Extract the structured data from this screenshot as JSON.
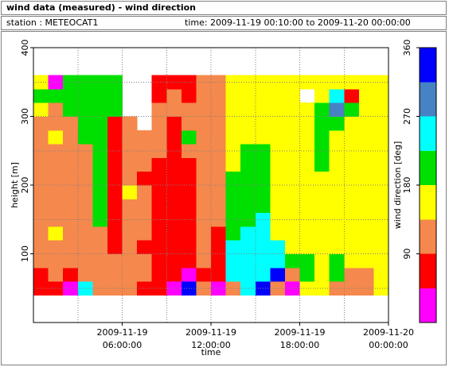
{
  "chart_data": {
    "type": "heatmap",
    "title": "wind data (measured) - wind direction",
    "station": "station : METEOCAT1",
    "period": "time: 2009-11-19 00:10:00 to 2009-11-20 00:00:00",
    "x_label": "time",
    "y_label": "height [m]",
    "xlim": [
      0,
      24
    ],
    "xticks": [
      {
        "value": 6,
        "label": [
          "2009-11-19",
          "06:00:00"
        ]
      },
      {
        "value": 12,
        "label": [
          "2009-11-19",
          "12:00:00"
        ]
      },
      {
        "value": 18,
        "label": [
          "2009-11-19",
          "18:00:00"
        ]
      },
      {
        "value": 24,
        "label": [
          "2009-11-20",
          "00:00:00"
        ]
      }
    ],
    "xminorticks": [
      3,
      9,
      15,
      21
    ],
    "ylim": [
      0,
      400
    ],
    "yticks": [
      100,
      200,
      300,
      400
    ],
    "yminorticks": [
      50,
      150,
      250,
      350
    ],
    "grid": true,
    "xbins": [
      0,
      1,
      2,
      3,
      4,
      5,
      6,
      7,
      8,
      9,
      10,
      11,
      12,
      13,
      14,
      15,
      16,
      17,
      18,
      19,
      20,
      21,
      22,
      23,
      24
    ],
    "ybins": [
      40,
      60,
      80,
      100,
      120,
      140,
      160,
      180,
      200,
      220,
      240,
      260,
      280,
      300,
      320,
      340,
      360
    ],
    "z": [
      [
        70,
        70,
        110,
        110,
        110,
        110,
        110,
        110,
        110,
        110,
        110,
        110,
        110,
        160,
        200,
        160
      ],
      [
        70,
        110,
        110,
        110,
        160,
        110,
        110,
        110,
        110,
        110,
        110,
        160,
        110,
        110,
        200,
        20
      ],
      [
        20,
        70,
        110,
        110,
        110,
        110,
        110,
        110,
        110,
        110,
        110,
        110,
        110,
        200,
        200,
        200
      ],
      [
        250,
        110,
        110,
        110,
        110,
        110,
        110,
        110,
        110,
        110,
        110,
        200,
        200,
        200,
        200,
        200
      ],
      [
        110,
        110,
        110,
        110,
        110,
        200,
        200,
        200,
        200,
        200,
        200,
        200,
        200,
        200,
        200,
        200
      ],
      [
        110,
        110,
        110,
        70,
        70,
        70,
        70,
        70,
        70,
        70,
        70,
        70,
        70,
        200,
        200,
        200
      ],
      [
        110,
        110,
        110,
        110,
        110,
        110,
        110,
        160,
        110,
        110,
        110,
        110,
        110,
        null,
        null,
        null
      ],
      [
        70,
        110,
        110,
        70,
        110,
        110,
        110,
        110,
        70,
        110,
        110,
        110,
        null,
        null,
        null,
        null
      ],
      [
        70,
        70,
        70,
        70,
        70,
        70,
        70,
        70,
        70,
        70,
        110,
        110,
        110,
        110,
        70,
        70
      ],
      [
        20,
        70,
        70,
        70,
        70,
        70,
        70,
        70,
        70,
        70,
        70,
        70,
        70,
        110,
        110,
        70
      ],
      [
        340,
        20,
        70,
        70,
        70,
        70,
        70,
        70,
        70,
        70,
        110,
        200,
        110,
        110,
        70,
        70
      ],
      [
        110,
        70,
        110,
        110,
        110,
        110,
        110,
        110,
        110,
        110,
        110,
        110,
        110,
        110,
        110,
        110
      ],
      [
        20,
        70,
        70,
        70,
        70,
        110,
        110,
        110,
        110,
        110,
        110,
        110,
        110,
        110,
        110,
        110
      ],
      [
        110,
        250,
        250,
        250,
        200,
        200,
        200,
        200,
        200,
        160,
        160,
        160,
        160,
        160,
        160,
        160
      ],
      [
        250,
        250,
        250,
        250,
        250,
        200,
        200,
        200,
        200,
        200,
        200,
        160,
        160,
        160,
        160,
        160
      ],
      [
        340,
        250,
        250,
        250,
        250,
        250,
        200,
        200,
        200,
        200,
        200,
        160,
        160,
        160,
        160,
        160
      ],
      [
        110,
        340,
        250,
        250,
        160,
        160,
        160,
        160,
        160,
        160,
        160,
        160,
        160,
        160,
        160,
        160
      ],
      [
        20,
        110,
        200,
        160,
        160,
        160,
        160,
        160,
        160,
        160,
        160,
        160,
        160,
        160,
        160,
        160
      ],
      [
        160,
        200,
        200,
        160,
        160,
        160,
        160,
        160,
        160,
        160,
        160,
        160,
        160,
        160,
        null,
        160
      ],
      [
        160,
        160,
        160,
        160,
        160,
        160,
        160,
        160,
        160,
        200,
        200,
        200,
        200,
        200,
        160,
        160
      ],
      [
        110,
        200,
        200,
        160,
        160,
        160,
        160,
        160,
        160,
        160,
        160,
        160,
        200,
        290,
        250,
        160
      ],
      [
        110,
        110,
        160,
        160,
        160,
        160,
        160,
        160,
        160,
        160,
        160,
        160,
        160,
        200,
        70,
        160
      ],
      [
        110,
        110,
        160,
        160,
        160,
        160,
        160,
        160,
        160,
        160,
        160,
        160,
        160,
        160,
        160,
        160
      ],
      [
        160,
        160,
        160,
        160,
        160,
        160,
        160,
        160,
        160,
        160,
        160,
        160,
        160,
        160,
        160,
        160
      ]
    ],
    "colorbar": {
      "label": "wind direction [deg]",
      "lim": [
        0,
        360
      ],
      "ticks": [
        90,
        180,
        270,
        360
      ],
      "bins": [
        0,
        45,
        90,
        135,
        180,
        225,
        270,
        315,
        360
      ],
      "colors": [
        "#ff00ff",
        "#ff0000",
        "#f5884c",
        "#ffff00",
        "#00e000",
        "#00ffff",
        "#4682c4",
        "#0000ff"
      ]
    }
  }
}
